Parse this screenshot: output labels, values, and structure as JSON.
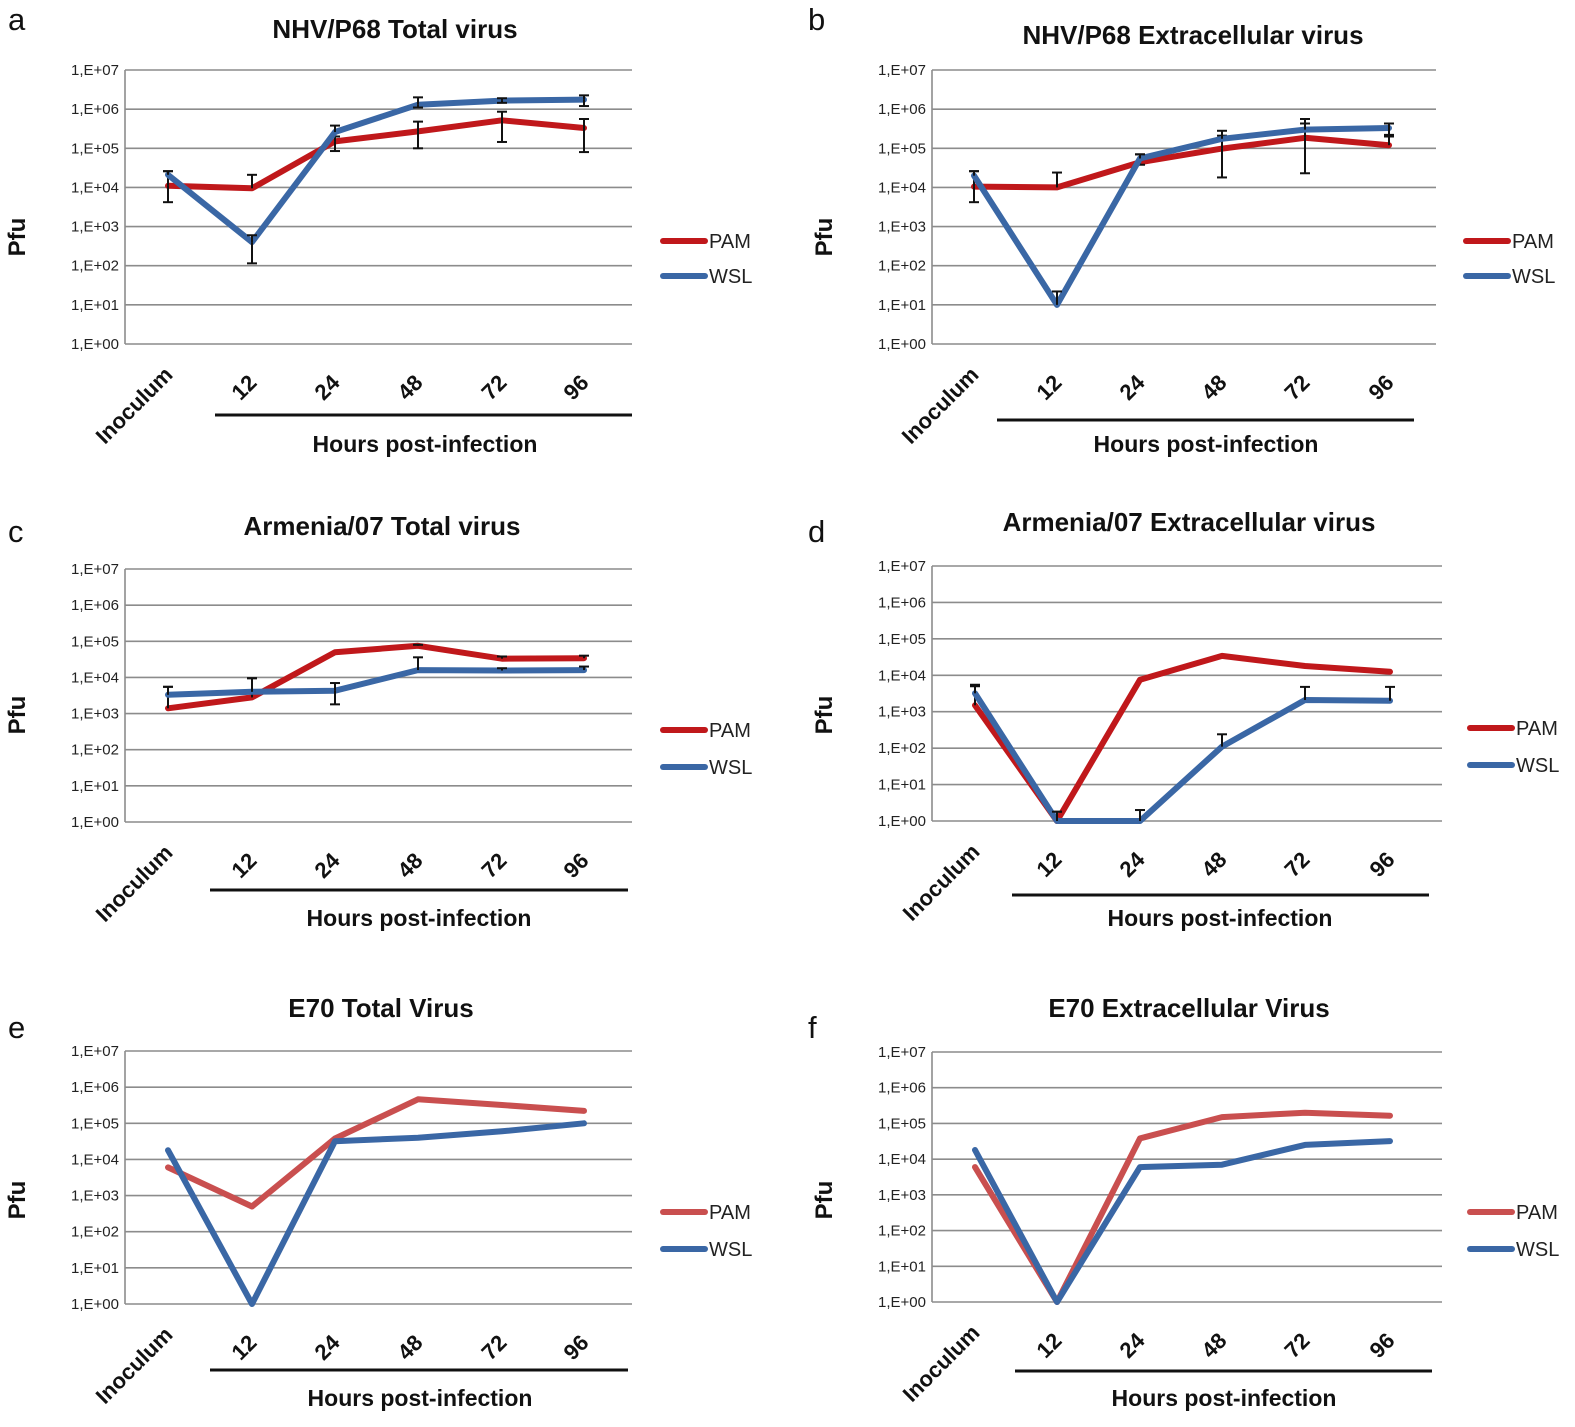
{
  "figure": {
    "y_tick_labels": [
      "1,E+00",
      "1,E+01",
      "1,E+02",
      "1,E+03",
      "1,E+04",
      "1,E+05",
      "1,E+06",
      "1,E+07"
    ],
    "line_colors": {
      "PAM": "#c0181b",
      "WSL": "#3a67a5"
    },
    "light_line_colors": {
      "PAM": "#c94f4f",
      "WSL": "#3a67a5"
    }
  },
  "chart_data": [
    {
      "panel": "a",
      "type": "line",
      "title": "NHV/P68 Total virus",
      "xlabel": "Hours post-infection",
      "ylabel": "Pfu",
      "y_scale": "log10",
      "ylim": [
        1,
        10000000
      ],
      "categories": [
        "Inoculum",
        "12",
        "24",
        "48",
        "72",
        "96"
      ],
      "legend": [
        "PAM",
        "WSL"
      ],
      "legend_position": "right",
      "grid": true,
      "series": [
        {
          "name": "PAM",
          "values": [
            11000,
            9500,
            150000,
            270000,
            520000,
            330000
          ],
          "error_high": [
            26000,
            21000,
            200000,
            480000,
            860000,
            560000
          ],
          "error_low": [
            4200,
            null,
            85000,
            100000,
            145000,
            80000
          ]
        },
        {
          "name": "WSL",
          "values": [
            21000,
            400,
            260000,
            1300000,
            1650000,
            1750000
          ],
          "error_high": [
            26000,
            600,
            380000,
            2000000,
            1900000,
            2250000
          ],
          "error_low": [
            null,
            115,
            null,
            1100000,
            1450000,
            1200000
          ]
        }
      ]
    },
    {
      "panel": "b",
      "type": "line",
      "title": "NHV/P68 Extracellular virus",
      "xlabel": "Hours post-infection",
      "ylabel": "Pfu",
      "y_scale": "log10",
      "ylim": [
        1,
        10000000
      ],
      "categories": [
        "Inoculum",
        "12",
        "24",
        "48",
        "72",
        "96"
      ],
      "legend": [
        "PAM",
        "WSL"
      ],
      "legend_position": "right",
      "grid": true,
      "series": [
        {
          "name": "PAM",
          "values": [
            10500,
            10000,
            44000,
            98000,
            185000,
            120000
          ],
          "error_high": [
            26000,
            24000,
            70000,
            210000,
            430000,
            200000
          ],
          "error_low": [
            4200,
            null,
            38000,
            18000,
            23000,
            null
          ]
        },
        {
          "name": "WSL",
          "values": [
            20000,
            10,
            55000,
            175000,
            300000,
            330000
          ],
          "error_high": [
            26000,
            22,
            70000,
            280000,
            560000,
            430000
          ],
          "error_low": [
            null,
            null,
            null,
            null,
            null,
            220000
          ]
        }
      ]
    },
    {
      "panel": "c",
      "type": "line",
      "title": "Armenia/07 Total virus",
      "xlabel": "Hours post-infection",
      "ylabel": "Pfu",
      "y_scale": "log10",
      "ylim": [
        1,
        10000000
      ],
      "categories": [
        "Inoculum",
        "12",
        "24",
        "48",
        "72",
        "96"
      ],
      "legend": [
        "PAM",
        "WSL"
      ],
      "legend_position": "right",
      "grid": true,
      "series": [
        {
          "name": "PAM",
          "values": [
            1400,
            2800,
            50000,
            75000,
            33000,
            34000
          ],
          "error_high": [
            5500,
            9500,
            null,
            80000,
            38000,
            40000
          ],
          "error_low": [
            null,
            null,
            null,
            null,
            null,
            null
          ]
        },
        {
          "name": "WSL",
          "values": [
            3300,
            4000,
            4300,
            16000,
            15500,
            16000
          ],
          "error_high": [
            5500,
            9500,
            7000,
            36000,
            18000,
            20000
          ],
          "error_low": [
            null,
            null,
            1800,
            null,
            null,
            null
          ]
        }
      ]
    },
    {
      "panel": "d",
      "type": "line",
      "title": "Armenia/07 Extracellular virus",
      "xlabel": "Hours post-infection",
      "ylabel": "Pfu",
      "y_scale": "log10",
      "ylim": [
        1,
        10000000
      ],
      "categories": [
        "Inoculum",
        "12",
        "24",
        "48",
        "72",
        "96"
      ],
      "legend": [
        "PAM",
        "WSL"
      ],
      "legend_position": "right",
      "grid": true,
      "series": [
        {
          "name": "PAM",
          "values": [
            1500,
            1,
            7500,
            34000,
            18000,
            12500
          ],
          "error_high": [
            5000,
            1.8,
            null,
            null,
            null,
            null
          ],
          "error_low": [
            null,
            null,
            null,
            null,
            null,
            null
          ]
        },
        {
          "name": "WSL",
          "values": [
            3200,
            1,
            1,
            110,
            2100,
            2000
          ],
          "error_high": [
            5500,
            1.8,
            2,
            240,
            4800,
            4800
          ],
          "error_low": [
            null,
            null,
            null,
            null,
            null,
            null
          ]
        }
      ]
    },
    {
      "panel": "e",
      "type": "line",
      "title": "E70 Total Virus",
      "xlabel": "Hours post-infection",
      "ylabel": "Pfu",
      "y_scale": "log10",
      "ylim": [
        1,
        10000000
      ],
      "categories": [
        "Inoculum",
        "12",
        "24",
        "48",
        "72",
        "96"
      ],
      "legend": [
        "PAM",
        "WSL"
      ],
      "legend_position": "right",
      "grid": true,
      "series": [
        {
          "name": "PAM",
          "values": [
            6000,
            500,
            38000,
            460000,
            320000,
            220000
          ]
        },
        {
          "name": "WSL",
          "values": [
            18000,
            1,
            32000,
            40000,
            60000,
            100000
          ]
        }
      ]
    },
    {
      "panel": "f",
      "type": "line",
      "title": "E70 Extracellular Virus",
      "xlabel": "Hours post-infection",
      "ylabel": "Pfu",
      "y_scale": "log10",
      "ylim": [
        1,
        10000000
      ],
      "categories": [
        "Inoculum",
        "12",
        "24",
        "48",
        "72",
        "96"
      ],
      "legend": [
        "PAM",
        "WSL"
      ],
      "legend_position": "right",
      "grid": true,
      "series": [
        {
          "name": "PAM",
          "values": [
            6000,
            1,
            38000,
            150000,
            200000,
            165000
          ]
        },
        {
          "name": "WSL",
          "values": [
            18000,
            1,
            6000,
            7000,
            25000,
            32000
          ]
        }
      ]
    }
  ]
}
